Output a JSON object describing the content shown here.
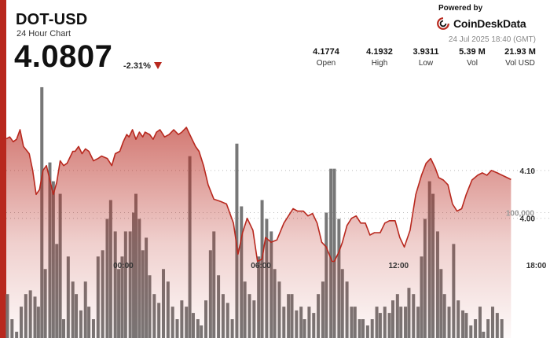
{
  "header": {
    "symbol": "DOT-USD",
    "subtitle": "24 Hour Chart",
    "price": "4.0807",
    "change": "-2.31%"
  },
  "brand": {
    "powered_by": "Powered by",
    "name": "CoinDeskData",
    "date": "24 Jul 2025 18:40 (GMT)"
  },
  "stats": [
    {
      "value": "4.1774",
      "label": "Open"
    },
    {
      "value": "4.1932",
      "label": "High"
    },
    {
      "value": "3.9311",
      "label": "Low"
    },
    {
      "value": "5.39 M",
      "label": "Vol"
    },
    {
      "value": "21.93 M",
      "label": "Vol USD"
    }
  ],
  "colors": {
    "accent": "#b8281e",
    "line": "#b8281e",
    "volume": "#777777"
  },
  "chart_data": {
    "type": "area",
    "x_tick_labels": [
      "00:00",
      "06:00",
      "12:00",
      "18:00"
    ],
    "x_tick_positions": [
      3,
      9,
      15,
      21
    ],
    "x_range": [
      -2.1,
      21.6
    ],
    "y_tick_labels": [
      "4.10",
      "4.00"
    ],
    "y_tick_values": [
      4.1,
      4.0
    ],
    "y_range": [
      3.75,
      4.3
    ],
    "volume_label": "100,000",
    "volume_label_value": 100000,
    "volume_range": [
      0,
      210000
    ],
    "grid": true,
    "price_series": [
      [
        -2.1,
        4.166
      ],
      [
        -1.95,
        4.17
      ],
      [
        -1.8,
        4.16
      ],
      [
        -1.65,
        4.165
      ],
      [
        -1.5,
        4.185
      ],
      [
        -1.35,
        4.15
      ],
      [
        -1.1,
        4.135
      ],
      [
        -0.95,
        4.1
      ],
      [
        -0.8,
        4.05
      ],
      [
        -0.65,
        4.06
      ],
      [
        -0.5,
        4.1
      ],
      [
        -0.35,
        4.11
      ],
      [
        -0.2,
        4.08
      ],
      [
        -0.05,
        4.05
      ],
      [
        0.1,
        4.075
      ],
      [
        0.25,
        4.12
      ],
      [
        0.4,
        4.11
      ],
      [
        0.55,
        4.115
      ],
      [
        0.8,
        4.14
      ],
      [
        0.9,
        4.14
      ],
      [
        1.05,
        4.15
      ],
      [
        1.2,
        4.135
      ],
      [
        1.35,
        4.145
      ],
      [
        1.5,
        4.14
      ],
      [
        1.7,
        4.12
      ],
      [
        1.9,
        4.125
      ],
      [
        2.05,
        4.13
      ],
      [
        2.3,
        4.125
      ],
      [
        2.5,
        4.11
      ],
      [
        2.65,
        4.135
      ],
      [
        2.85,
        4.14
      ],
      [
        3.0,
        4.16
      ],
      [
        3.15,
        4.175
      ],
      [
        3.25,
        4.17
      ],
      [
        3.4,
        4.185
      ],
      [
        3.55,
        4.165
      ],
      [
        3.7,
        4.18
      ],
      [
        3.85,
        4.17
      ],
      [
        3.95,
        4.18
      ],
      [
        4.15,
        4.175
      ],
      [
        4.3,
        4.165
      ],
      [
        4.45,
        4.18
      ],
      [
        4.6,
        4.185
      ],
      [
        4.8,
        4.17
      ],
      [
        5.0,
        4.175
      ],
      [
        5.2,
        4.185
      ],
      [
        5.4,
        4.175
      ],
      [
        5.55,
        4.18
      ],
      [
        5.75,
        4.19
      ],
      [
        5.95,
        4.17
      ],
      [
        6.15,
        4.15
      ],
      [
        6.3,
        4.14
      ],
      [
        6.5,
        4.11
      ],
      [
        6.7,
        4.07
      ],
      [
        6.95,
        4.04
      ],
      [
        7.25,
        4.035
      ],
      [
        7.5,
        4.03
      ],
      [
        7.8,
        3.99
      ],
      [
        8.0,
        3.925
      ],
      [
        8.2,
        3.97
      ],
      [
        8.4,
        4.0
      ],
      [
        8.65,
        3.975
      ],
      [
        8.85,
        3.91
      ],
      [
        9.05,
        3.915
      ],
      [
        9.2,
        3.96
      ],
      [
        9.45,
        3.95
      ],
      [
        9.7,
        3.955
      ],
      [
        10.0,
        3.99
      ],
      [
        10.2,
        4.005
      ],
      [
        10.4,
        4.02
      ],
      [
        10.6,
        4.015
      ],
      [
        10.85,
        4.015
      ],
      [
        11.05,
        4.005
      ],
      [
        11.25,
        4.01
      ],
      [
        11.45,
        3.99
      ],
      [
        11.65,
        3.95
      ],
      [
        11.85,
        3.94
      ],
      [
        12.1,
        3.91
      ],
      [
        12.2,
        3.91
      ],
      [
        12.4,
        3.93
      ],
      [
        12.55,
        3.95
      ],
      [
        12.75,
        3.985
      ],
      [
        12.95,
        4.0
      ],
      [
        13.15,
        4.005
      ],
      [
        13.35,
        3.99
      ],
      [
        13.55,
        3.99
      ],
      [
        13.75,
        3.965
      ],
      [
        13.95,
        3.97
      ],
      [
        14.2,
        3.97
      ],
      [
        14.4,
        3.99
      ],
      [
        14.6,
        3.995
      ],
      [
        14.85,
        3.995
      ],
      [
        15.05,
        3.96
      ],
      [
        15.25,
        3.94
      ],
      [
        15.5,
        3.975
      ],
      [
        15.75,
        4.05
      ],
      [
        16.0,
        4.09
      ],
      [
        16.2,
        4.115
      ],
      [
        16.4,
        4.125
      ],
      [
        16.6,
        4.105
      ],
      [
        16.75,
        4.085
      ],
      [
        16.95,
        4.08
      ],
      [
        17.15,
        4.07
      ],
      [
        17.35,
        4.03
      ],
      [
        17.55,
        4.015
      ],
      [
        17.75,
        4.02
      ],
      [
        17.95,
        4.05
      ],
      [
        18.2,
        4.08
      ],
      [
        18.45,
        4.09
      ],
      [
        18.65,
        4.095
      ],
      [
        18.85,
        4.09
      ],
      [
        19.05,
        4.1
      ],
      [
        19.3,
        4.095
      ],
      [
        19.6,
        4.088
      ],
      [
        19.9,
        4.081
      ]
    ],
    "volume_series": [
      [
        -2.05,
        35000
      ],
      [
        -1.85,
        15000
      ],
      [
        -1.65,
        5000
      ],
      [
        -1.45,
        25000
      ],
      [
        -1.25,
        35000
      ],
      [
        -1.05,
        38000
      ],
      [
        -0.85,
        33000
      ],
      [
        -0.7,
        25000
      ],
      [
        -0.55,
        200000
      ],
      [
        -0.4,
        55000
      ],
      [
        -0.2,
        140000
      ],
      [
        -0.05,
        125000
      ],
      [
        0.1,
        75000
      ],
      [
        0.25,
        115000
      ],
      [
        0.4,
        15000
      ],
      [
        0.6,
        65000
      ],
      [
        0.8,
        45000
      ],
      [
        0.95,
        35000
      ],
      [
        1.15,
        22000
      ],
      [
        1.35,
        45000
      ],
      [
        1.5,
        25000
      ],
      [
        1.7,
        15000
      ],
      [
        1.9,
        65000
      ],
      [
        2.1,
        70000
      ],
      [
        2.3,
        95000
      ],
      [
        2.45,
        110000
      ],
      [
        2.65,
        85000
      ],
      [
        2.8,
        55000
      ],
      [
        2.95,
        65000
      ],
      [
        3.1,
        85000
      ],
      [
        3.3,
        85000
      ],
      [
        3.45,
        100000
      ],
      [
        3.55,
        115000
      ],
      [
        3.7,
        95000
      ],
      [
        3.85,
        70000
      ],
      [
        4.0,
        80000
      ],
      [
        4.15,
        50000
      ],
      [
        4.35,
        35000
      ],
      [
        4.55,
        28000
      ],
      [
        4.75,
        55000
      ],
      [
        4.95,
        45000
      ],
      [
        5.15,
        25000
      ],
      [
        5.35,
        15000
      ],
      [
        5.55,
        30000
      ],
      [
        5.75,
        25000
      ],
      [
        5.9,
        145000
      ],
      [
        6.05,
        20000
      ],
      [
        6.25,
        15000
      ],
      [
        6.4,
        10000
      ],
      [
        6.6,
        30000
      ],
      [
        6.8,
        70000
      ],
      [
        6.95,
        85000
      ],
      [
        7.15,
        50000
      ],
      [
        7.35,
        35000
      ],
      [
        7.55,
        28000
      ],
      [
        7.75,
        15000
      ],
      [
        7.95,
        155000
      ],
      [
        8.15,
        105000
      ],
      [
        8.3,
        45000
      ],
      [
        8.5,
        35000
      ],
      [
        8.7,
        30000
      ],
      [
        8.9,
        65000
      ],
      [
        9.05,
        110000
      ],
      [
        9.25,
        95000
      ],
      [
        9.45,
        85000
      ],
      [
        9.6,
        55000
      ],
      [
        9.8,
        45000
      ],
      [
        10.0,
        25000
      ],
      [
        10.2,
        35000
      ],
      [
        10.35,
        35000
      ],
      [
        10.55,
        22000
      ],
      [
        10.75,
        25000
      ],
      [
        10.9,
        15000
      ],
      [
        11.1,
        25000
      ],
      [
        11.3,
        20000
      ],
      [
        11.5,
        35000
      ],
      [
        11.7,
        45000
      ],
      [
        11.85,
        100000
      ],
      [
        12.05,
        135000
      ],
      [
        12.2,
        135000
      ],
      [
        12.4,
        95000
      ],
      [
        12.55,
        55000
      ],
      [
        12.75,
        45000
      ],
      [
        12.95,
        25000
      ],
      [
        13.1,
        25000
      ],
      [
        13.3,
        15000
      ],
      [
        13.45,
        15000
      ],
      [
        13.65,
        10000
      ],
      [
        13.85,
        15000
      ],
      [
        14.05,
        25000
      ],
      [
        14.2,
        20000
      ],
      [
        14.4,
        25000
      ],
      [
        14.6,
        20000
      ],
      [
        14.75,
        30000
      ],
      [
        14.95,
        35000
      ],
      [
        15.1,
        25000
      ],
      [
        15.3,
        25000
      ],
      [
        15.45,
        40000
      ],
      [
        15.65,
        35000
      ],
      [
        15.85,
        25000
      ],
      [
        16.0,
        65000
      ],
      [
        16.15,
        95000
      ],
      [
        16.35,
        125000
      ],
      [
        16.5,
        115000
      ],
      [
        16.7,
        85000
      ],
      [
        16.85,
        55000
      ],
      [
        17.0,
        35000
      ],
      [
        17.2,
        25000
      ],
      [
        17.4,
        75000
      ],
      [
        17.6,
        30000
      ],
      [
        17.8,
        22000
      ],
      [
        17.95,
        20000
      ],
      [
        18.15,
        10000
      ],
      [
        18.35,
        15000
      ],
      [
        18.55,
        25000
      ],
      [
        18.7,
        5000
      ],
      [
        18.9,
        15000
      ],
      [
        19.1,
        25000
      ],
      [
        19.3,
        20000
      ],
      [
        19.5,
        15000
      ]
    ]
  }
}
